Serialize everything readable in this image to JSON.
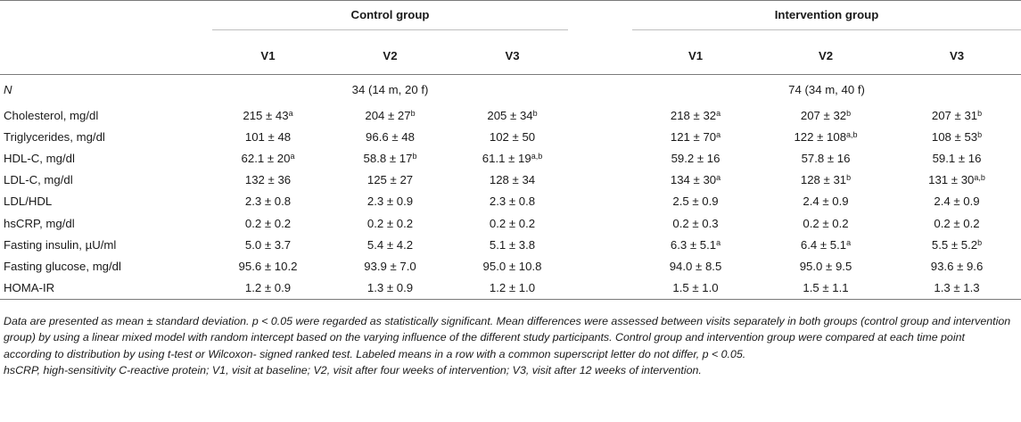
{
  "header": {
    "control_label": "Control group",
    "intervention_label": "Intervention group",
    "visits": [
      "V1",
      "V2",
      "V3",
      "V1",
      "V2",
      "V3"
    ]
  },
  "n_row": {
    "label": "N",
    "control": "34 (14 m, 20 f)",
    "intervention": "74 (34 m, 40 f)"
  },
  "rows": [
    {
      "label": "Cholesterol, mg/dl",
      "cells": [
        {
          "v": "215 ± 43",
          "s": "a"
        },
        {
          "v": "204 ± 27",
          "s": "b"
        },
        {
          "v": "205 ± 34",
          "s": "b"
        },
        {
          "v": "218 ± 32",
          "s": "a"
        },
        {
          "v": "207 ± 32",
          "s": "b"
        },
        {
          "v": "207 ± 31",
          "s": "b"
        }
      ]
    },
    {
      "label": "Triglycerides, mg/dl",
      "cells": [
        {
          "v": "101 ± 48",
          "s": ""
        },
        {
          "v": "96.6 ± 48",
          "s": ""
        },
        {
          "v": "102 ± 50",
          "s": ""
        },
        {
          "v": "121 ± 70",
          "s": "a"
        },
        {
          "v": "122 ± 108",
          "s": "a,b"
        },
        {
          "v": "108 ± 53",
          "s": "b"
        }
      ]
    },
    {
      "label": "HDL-C, mg/dl",
      "cells": [
        {
          "v": "62.1 ± 20",
          "s": "a"
        },
        {
          "v": "58.8 ± 17",
          "s": "b"
        },
        {
          "v": "61.1 ± 19",
          "s": "a,b"
        },
        {
          "v": "59.2 ± 16",
          "s": ""
        },
        {
          "v": "57.8 ± 16",
          "s": ""
        },
        {
          "v": "59.1 ± 16",
          "s": ""
        }
      ]
    },
    {
      "label": "LDL-C, mg/dl",
      "cells": [
        {
          "v": "132 ± 36",
          "s": ""
        },
        {
          "v": "125 ± 27",
          "s": ""
        },
        {
          "v": "128 ± 34",
          "s": ""
        },
        {
          "v": "134 ± 30",
          "s": "a"
        },
        {
          "v": "128 ± 31",
          "s": "b"
        },
        {
          "v": "131 ± 30",
          "s": "a,b"
        }
      ]
    },
    {
      "label": "LDL/HDL",
      "cells": [
        {
          "v": "2.3 ± 0.8",
          "s": ""
        },
        {
          "v": "2.3 ± 0.9",
          "s": ""
        },
        {
          "v": "2.3 ± 0.8",
          "s": ""
        },
        {
          "v": "2.5 ± 0.9",
          "s": ""
        },
        {
          "v": "2.4 ± 0.9",
          "s": ""
        },
        {
          "v": "2.4 ± 0.9",
          "s": ""
        }
      ]
    },
    {
      "label": "hsCRP, mg/dl",
      "cells": [
        {
          "v": "0.2 ± 0.2",
          "s": ""
        },
        {
          "v": "0.2 ± 0.2",
          "s": ""
        },
        {
          "v": "0.2 ± 0.2",
          "s": ""
        },
        {
          "v": "0.2 ± 0.3",
          "s": ""
        },
        {
          "v": "0.2 ± 0.2",
          "s": ""
        },
        {
          "v": "0.2 ± 0.2",
          "s": ""
        }
      ]
    },
    {
      "label": "Fasting insulin, µU/ml",
      "cells": [
        {
          "v": "5.0 ± 3.7",
          "s": ""
        },
        {
          "v": "5.4 ± 4.2",
          "s": ""
        },
        {
          "v": "5.1 ± 3.8",
          "s": ""
        },
        {
          "v": "6.3 ± 5.1",
          "s": "a"
        },
        {
          "v": "6.4 ± 5.1",
          "s": "a"
        },
        {
          "v": "5.5 ± 5.2",
          "s": "b"
        }
      ]
    },
    {
      "label": "Fasting glucose, mg/dl",
      "cells": [
        {
          "v": "95.6 ± 10.2",
          "s": ""
        },
        {
          "v": "93.9 ± 7.0",
          "s": ""
        },
        {
          "v": "95.0 ± 10.8",
          "s": ""
        },
        {
          "v": "94.0 ± 8.5",
          "s": ""
        },
        {
          "v": "95.0 ± 9.5",
          "s": ""
        },
        {
          "v": "93.6 ± 9.6",
          "s": ""
        }
      ]
    },
    {
      "label": "HOMA-IR",
      "cells": [
        {
          "v": "1.2 ± 0.9",
          "s": ""
        },
        {
          "v": "1.3 ± 0.9",
          "s": ""
        },
        {
          "v": "1.2 ± 1.0",
          "s": ""
        },
        {
          "v": "1.5 ± 1.0",
          "s": ""
        },
        {
          "v": "1.5 ± 1.1",
          "s": ""
        },
        {
          "v": "1.3 ± 1.3",
          "s": ""
        }
      ]
    }
  ],
  "notes": {
    "main": "Data are presented as mean ± standard deviation. p < 0.05 were regarded as statistically significant. Mean differences were assessed between visits separately in both groups (control group and intervention group) by using a linear mixed model with random intercept based on the varying influence of the different study participants. Control group and intervention group were compared at each time point according to distribution by using t-test or Wilcoxon- signed ranked test. Labeled means in a row with a common superscript letter do not differ, p < 0.05.",
    "abbrev": "hsCRP, high-sensitivity C-reactive protein; V1, visit at baseline; V2, visit after four weeks of intervention; V3, visit after 12 weeks of intervention."
  }
}
